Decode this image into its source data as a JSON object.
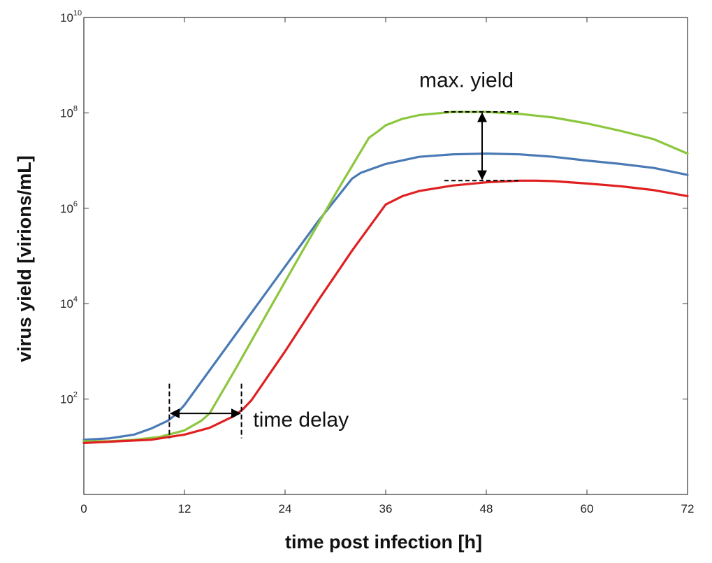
{
  "chart_data": {
    "type": "line",
    "xlabel": "time post infection  [h]",
    "ylabel": "virus yield [virions/mL]",
    "x_ticks": [
      0,
      12,
      24,
      36,
      48,
      60,
      72
    ],
    "y_ticks": [
      {
        "value": 100,
        "base": "10",
        "exp": "2"
      },
      {
        "value": 10000,
        "base": "10",
        "exp": "4"
      },
      {
        "value": 1000000,
        "base": "10",
        "exp": "6"
      },
      {
        "value": 100000000,
        "base": "10",
        "exp": "8"
      },
      {
        "value": 10000000000,
        "base": "10",
        "exp": "10"
      }
    ],
    "xlim": [
      0,
      72
    ],
    "ylim": [
      1,
      10000000000
    ],
    "yscale": "log",
    "grid": false,
    "series": [
      {
        "color": "#4a7ab5",
        "x": [
          0,
          3,
          6,
          8,
          10,
          11,
          12,
          16,
          20,
          24,
          28,
          32,
          33,
          36,
          40,
          44,
          48,
          52,
          56,
          60,
          64,
          68,
          72
        ],
        "y": [
          14,
          15,
          18,
          24,
          35,
          48,
          75,
          700,
          6500,
          60000,
          550000,
          4200000,
          5500000,
          8500000,
          12000000,
          13500000,
          14000000,
          13500000,
          12000000,
          10000000,
          8500000,
          7000000,
          5000000
        ]
      },
      {
        "color": "#8cc63e",
        "x": [
          0,
          3,
          6,
          9,
          12,
          14,
          15,
          18,
          22,
          26,
          30,
          34,
          35,
          36,
          38,
          40,
          44,
          48,
          52,
          56,
          60,
          64,
          68,
          72
        ],
        "y": [
          13,
          13,
          14,
          16,
          22,
          35,
          50,
          400,
          7000,
          120000,
          2000000,
          30000000,
          40000000,
          55000000,
          75000000,
          90000000,
          105000000,
          105000000,
          95000000,
          80000000,
          60000000,
          42000000,
          28000000,
          14000000
        ]
      },
      {
        "color": "#e02020",
        "x": [
          0,
          4,
          8,
          12,
          15,
          18,
          19,
          20,
          24,
          28,
          32,
          36,
          38,
          40,
          44,
          48,
          52,
          54,
          56,
          60,
          64,
          68,
          72
        ],
        "y": [
          12,
          13,
          14,
          18,
          25,
          45,
          62,
          95,
          1000,
          12000,
          130000,
          1200000,
          1800000,
          2300000,
          3000000,
          3500000,
          3800000,
          3800000,
          3700000,
          3300000,
          2900000,
          2400000,
          1800000
        ]
      }
    ],
    "annotations": {
      "max_yield": {
        "text": "max. yield"
      },
      "time_delay": {
        "text": "time delay"
      }
    }
  }
}
